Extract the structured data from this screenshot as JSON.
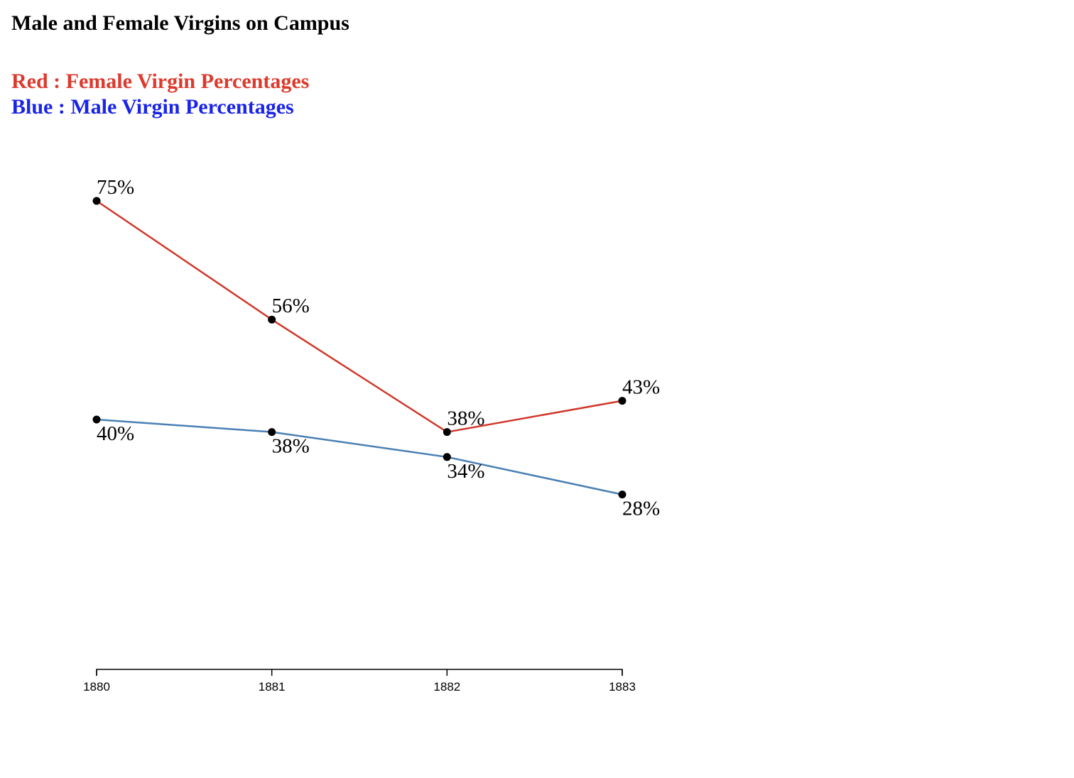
{
  "page": {
    "title": "Male and Female Virgins on Campus",
    "legend": {
      "red_label": "Red : Female Virgin Percentages",
      "blue_label": "Blue : Male Virgin Percentages",
      "red_color": "#dc3a2c",
      "blue_color": "#1a24e8"
    }
  },
  "chart_data": {
    "type": "line",
    "title": "Male and Female Virgins on Campus",
    "xlabel": "",
    "ylabel": "",
    "categories": [
      "1880",
      "1881",
      "1882",
      "1883"
    ],
    "ylim": [
      0,
      100
    ],
    "grid": false,
    "legend_placement": "top-left",
    "value_suffix": "%",
    "series": [
      {
        "name": "Red : Female Virgin Percentages",
        "color": "#d0382b",
        "values": [
          75,
          56,
          38,
          43
        ]
      },
      {
        "name": "Blue : Male Virgin Percentages",
        "color": "#4a80b4",
        "values": [
          40,
          38,
          34,
          28
        ]
      }
    ]
  }
}
